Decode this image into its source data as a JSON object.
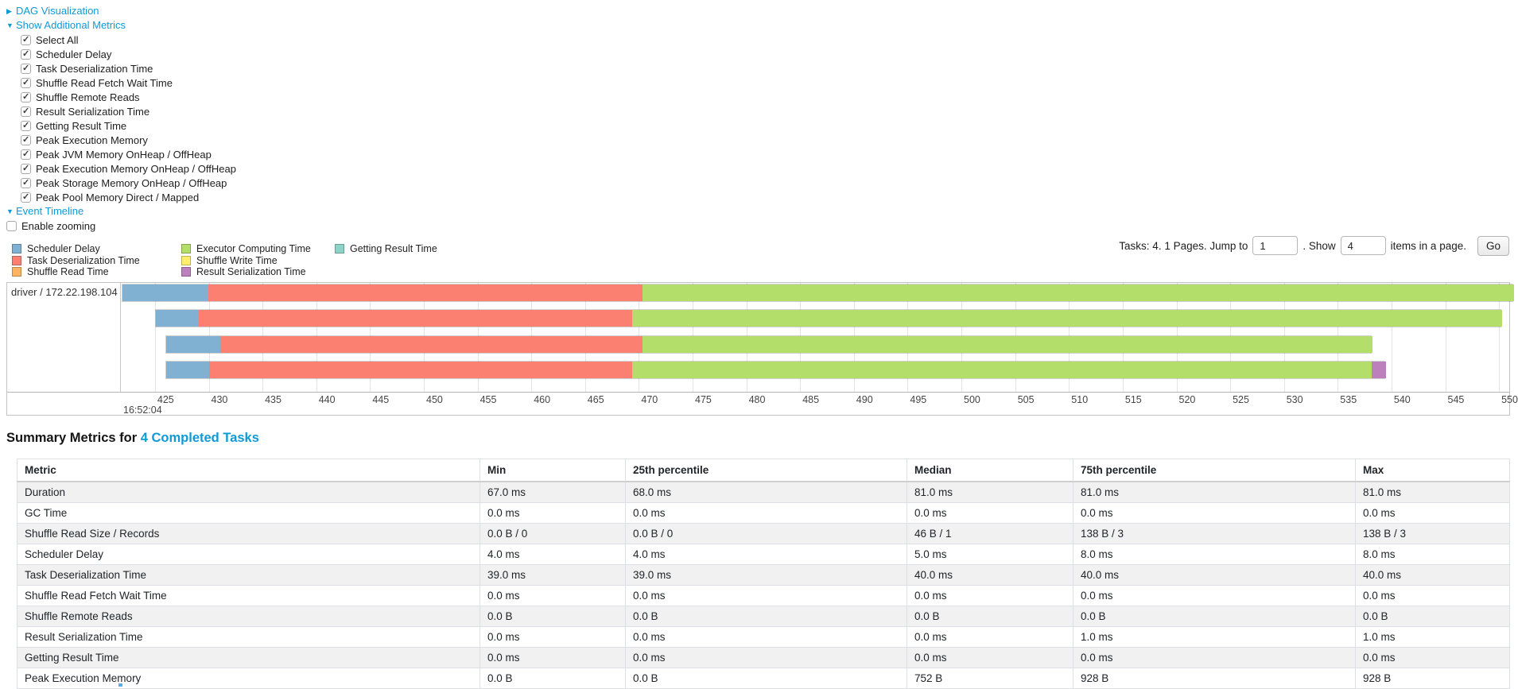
{
  "icons": {
    "collapsed": "▶",
    "expanded": "▼"
  },
  "toggles": {
    "dag": "DAG Visualization",
    "metrics": "Show Additional Metrics",
    "event_timeline": "Event Timeline"
  },
  "metrics_panel": {
    "items": [
      "Select All",
      "Scheduler Delay",
      "Task Deserialization Time",
      "Shuffle Read Fetch Wait Time",
      "Shuffle Remote Reads",
      "Result Serialization Time",
      "Getting Result Time",
      "Peak Execution Memory",
      "Peak JVM Memory OnHeap / OffHeap",
      "Peak Execution Memory OnHeap / OffHeap",
      "Peak Storage Memory OnHeap / OffHeap",
      "Peak Pool Memory Direct / Mapped"
    ],
    "all_checked": true
  },
  "enable_zooming_label": "Enable zooming",
  "enable_zooming_checked": false,
  "palette": {
    "scheduler_delay": "#80B1D3",
    "task_deserialization": "#FB8072",
    "shuffle_read": "#FDB462",
    "executor_computing": "#B3DE69",
    "shuffle_write": "#FFED6F",
    "result_serialization": "#BC80BD",
    "getting_result": "#8DD3C7"
  },
  "legend": {
    "columns": [
      [
        {
          "key": "scheduler_delay",
          "label": "Scheduler Delay"
        },
        {
          "key": "task_deserialization",
          "label": "Task Deserialization Time"
        },
        {
          "key": "shuffle_read",
          "label": "Shuffle Read Time"
        }
      ],
      [
        {
          "key": "executor_computing",
          "label": "Executor Computing Time"
        },
        {
          "key": "shuffle_write",
          "label": "Shuffle Write Time"
        },
        {
          "key": "result_serialization",
          "label": "Result Serialization Time"
        }
      ],
      [
        {
          "key": "getting_result",
          "label": "Getting Result Time"
        }
      ]
    ]
  },
  "pagination": {
    "tasks_text": "Tasks: 4. 1 Pages. Jump to",
    "jump_value": "1",
    "show_label": ". Show",
    "show_value": "4",
    "items_text": "items in a page.",
    "go_label": "Go"
  },
  "timeline": {
    "group_label": "driver / 172.22.198.104",
    "axis": {
      "window_min": 421.9,
      "window_max": 551.1,
      "tick_step": 5,
      "ticks": [
        425,
        430,
        435,
        440,
        445,
        450,
        455,
        460,
        465,
        470,
        475,
        480,
        485,
        490,
        495,
        500,
        505,
        510,
        515,
        520,
        525,
        530,
        535,
        540,
        545,
        550
      ],
      "major_label": "16:52:04"
    },
    "bars": [
      {
        "start": 421.9,
        "segments": [
          {
            "metric": "scheduler_delay",
            "end": 429.9
          },
          {
            "metric": "task_deserialization",
            "end": 470.3
          },
          {
            "metric": "executor_computing",
            "end": 551.3
          }
        ]
      },
      {
        "start": 425.0,
        "segments": [
          {
            "metric": "scheduler_delay",
            "end": 429.0
          },
          {
            "metric": "task_deserialization",
            "end": 469.3
          },
          {
            "metric": "executor_computing",
            "end": 550.2
          }
        ]
      },
      {
        "start": 426.0,
        "segments": [
          {
            "metric": "scheduler_delay",
            "end": 431.0
          },
          {
            "metric": "task_deserialization",
            "end": 470.3
          },
          {
            "metric": "executor_computing",
            "end": 538.2
          }
        ]
      },
      {
        "start": 426.0,
        "segments": [
          {
            "metric": "scheduler_delay",
            "end": 430.0
          },
          {
            "metric": "task_deserialization",
            "end": 469.3
          },
          {
            "metric": "executor_computing",
            "end": 538.1
          },
          {
            "metric": "result_serialization",
            "end": 539.4
          }
        ]
      }
    ]
  },
  "summary": {
    "title_prefix": "Summary Metrics for",
    "title_link": "4 Completed Tasks"
  },
  "summary_table": {
    "columns": [
      "Metric",
      "Min",
      "25th percentile",
      "Median",
      "75th percentile",
      "Max"
    ],
    "rows": [
      [
        "Duration",
        "67.0 ms",
        "68.0 ms",
        "81.0 ms",
        "81.0 ms",
        "81.0 ms"
      ],
      [
        "GC Time",
        "0.0 ms",
        "0.0 ms",
        "0.0 ms",
        "0.0 ms",
        "0.0 ms"
      ],
      [
        "Shuffle Read Size / Records",
        "0.0 B / 0",
        "0.0 B / 0",
        "46 B / 1",
        "138 B / 3",
        "138 B / 3"
      ],
      [
        "Scheduler Delay",
        "4.0 ms",
        "4.0 ms",
        "5.0 ms",
        "8.0 ms",
        "8.0 ms"
      ],
      [
        "Task Deserialization Time",
        "39.0 ms",
        "39.0 ms",
        "40.0 ms",
        "40.0 ms",
        "40.0 ms"
      ],
      [
        "Shuffle Read Fetch Wait Time",
        "0.0 ms",
        "0.0 ms",
        "0.0 ms",
        "0.0 ms",
        "0.0 ms"
      ],
      [
        "Shuffle Remote Reads",
        "0.0 B",
        "0.0 B",
        "0.0 B",
        "0.0 B",
        "0.0 B"
      ],
      [
        "Result Serialization Time",
        "0.0 ms",
        "0.0 ms",
        "0.0 ms",
        "1.0 ms",
        "1.0 ms"
      ],
      [
        "Getting Result Time",
        "0.0 ms",
        "0.0 ms",
        "0.0 ms",
        "0.0 ms",
        "0.0 ms"
      ],
      [
        "Peak Execution Memory",
        "0.0 B",
        "0.0 B",
        "752 B",
        "928 B",
        "928 B"
      ]
    ]
  }
}
